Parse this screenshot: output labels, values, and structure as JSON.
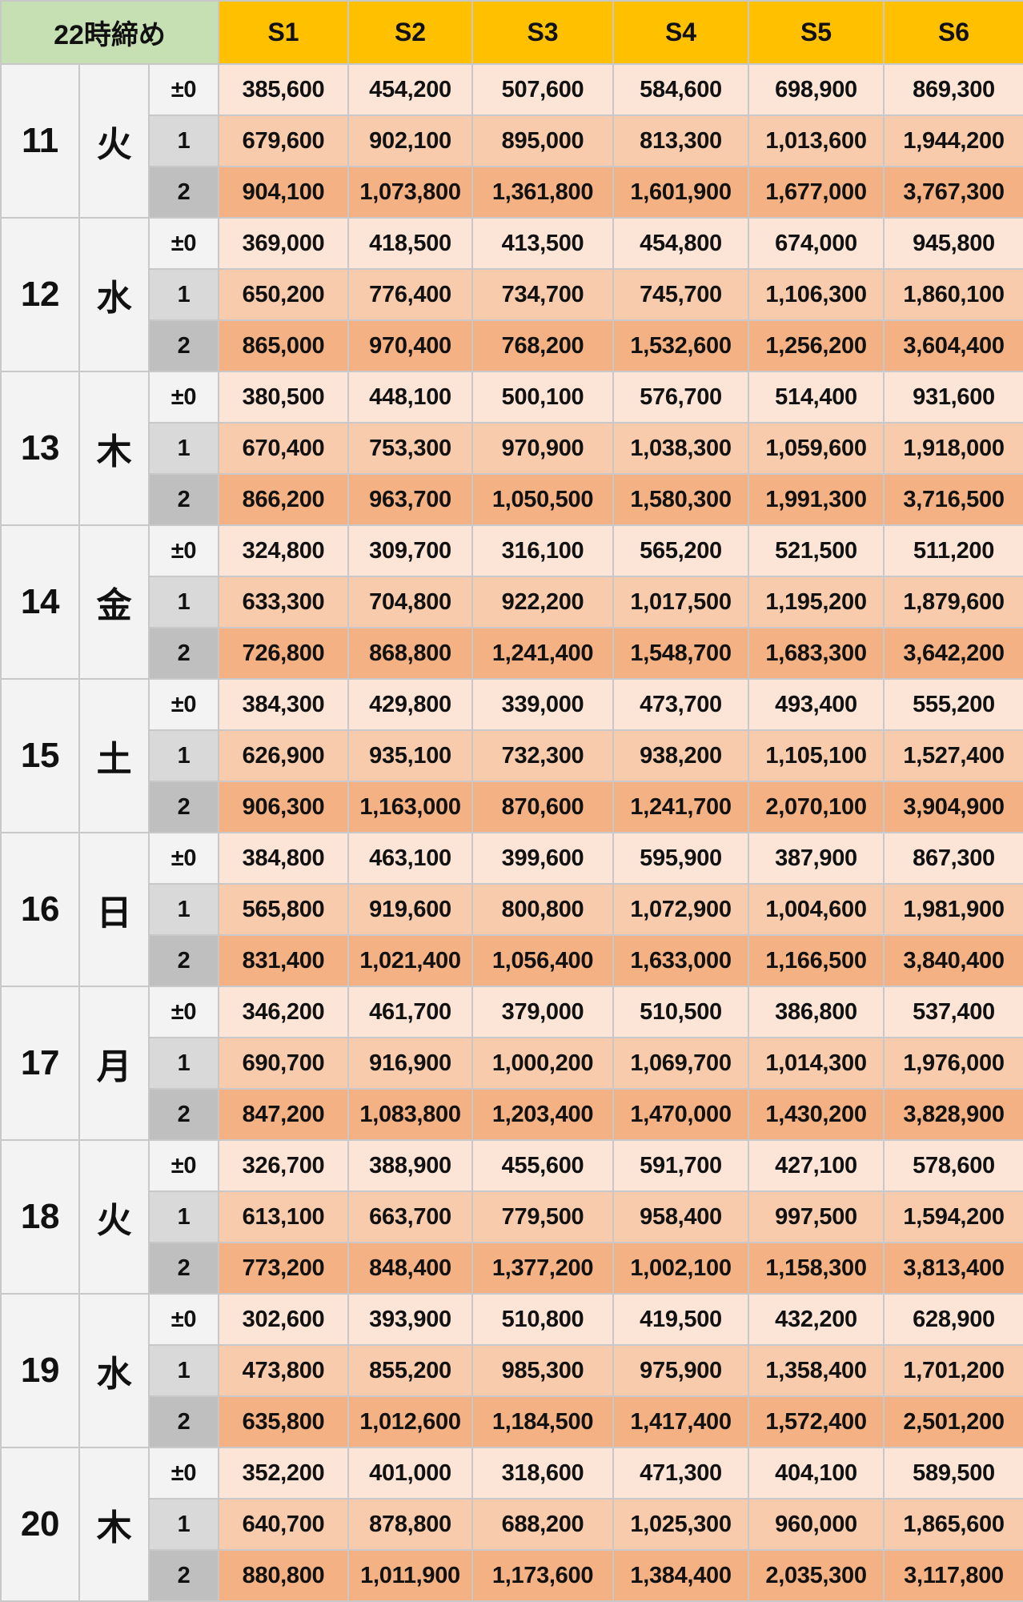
{
  "header": {
    "corner": "22時締め",
    "columns": [
      "S1",
      "S2",
      "S3",
      "S4",
      "S5",
      "S6"
    ]
  },
  "row_labels": [
    "±0",
    "1",
    "2"
  ],
  "colors": {
    "corner": "#c6e0b4",
    "header": "#ffc000",
    "row0": "#fce4d6",
    "row1": "#f8cbad",
    "row2": "#f4b183"
  },
  "days": [
    {
      "date": "11",
      "dow": "火",
      "rows": [
        [
          "385,600",
          "454,200",
          "507,600",
          "584,600",
          "698,900",
          "869,300"
        ],
        [
          "679,600",
          "902,100",
          "895,000",
          "813,300",
          "1,013,600",
          "1,944,200"
        ],
        [
          "904,100",
          "1,073,800",
          "1,361,800",
          "1,601,900",
          "1,677,000",
          "3,767,300"
        ]
      ]
    },
    {
      "date": "12",
      "dow": "水",
      "rows": [
        [
          "369,000",
          "418,500",
          "413,500",
          "454,800",
          "674,000",
          "945,800"
        ],
        [
          "650,200",
          "776,400",
          "734,700",
          "745,700",
          "1,106,300",
          "1,860,100"
        ],
        [
          "865,000",
          "970,400",
          "768,200",
          "1,532,600",
          "1,256,200",
          "3,604,400"
        ]
      ]
    },
    {
      "date": "13",
      "dow": "木",
      "rows": [
        [
          "380,500",
          "448,100",
          "500,100",
          "576,700",
          "514,400",
          "931,600"
        ],
        [
          "670,400",
          "753,300",
          "970,900",
          "1,038,300",
          "1,059,600",
          "1,918,000"
        ],
        [
          "866,200",
          "963,700",
          "1,050,500",
          "1,580,300",
          "1,991,300",
          "3,716,500"
        ]
      ]
    },
    {
      "date": "14",
      "dow": "金",
      "rows": [
        [
          "324,800",
          "309,700",
          "316,100",
          "565,200",
          "521,500",
          "511,200"
        ],
        [
          "633,300",
          "704,800",
          "922,200",
          "1,017,500",
          "1,195,200",
          "1,879,600"
        ],
        [
          "726,800",
          "868,800",
          "1,241,400",
          "1,548,700",
          "1,683,300",
          "3,642,200"
        ]
      ]
    },
    {
      "date": "15",
      "dow": "土",
      "rows": [
        [
          "384,300",
          "429,800",
          "339,000",
          "473,700",
          "493,400",
          "555,200"
        ],
        [
          "626,900",
          "935,100",
          "732,300",
          "938,200",
          "1,105,100",
          "1,527,400"
        ],
        [
          "906,300",
          "1,163,000",
          "870,600",
          "1,241,700",
          "2,070,100",
          "3,904,900"
        ]
      ]
    },
    {
      "date": "16",
      "dow": "日",
      "rows": [
        [
          "384,800",
          "463,100",
          "399,600",
          "595,900",
          "387,900",
          "867,300"
        ],
        [
          "565,800",
          "919,600",
          "800,800",
          "1,072,900",
          "1,004,600",
          "1,981,900"
        ],
        [
          "831,400",
          "1,021,400",
          "1,056,400",
          "1,633,000",
          "1,166,500",
          "3,840,400"
        ]
      ]
    },
    {
      "date": "17",
      "dow": "月",
      "rows": [
        [
          "346,200",
          "461,700",
          "379,000",
          "510,500",
          "386,800",
          "537,400"
        ],
        [
          "690,700",
          "916,900",
          "1,000,200",
          "1,069,700",
          "1,014,300",
          "1,976,000"
        ],
        [
          "847,200",
          "1,083,800",
          "1,203,400",
          "1,470,000",
          "1,430,200",
          "3,828,900"
        ]
      ]
    },
    {
      "date": "18",
      "dow": "火",
      "rows": [
        [
          "326,700",
          "388,900",
          "455,600",
          "591,700",
          "427,100",
          "578,600"
        ],
        [
          "613,100",
          "663,700",
          "779,500",
          "958,400",
          "997,500",
          "1,594,200"
        ],
        [
          "773,200",
          "848,400",
          "1,377,200",
          "1,002,100",
          "1,158,300",
          "3,813,400"
        ]
      ]
    },
    {
      "date": "19",
      "dow": "水",
      "rows": [
        [
          "302,600",
          "393,900",
          "510,800",
          "419,500",
          "432,200",
          "628,900"
        ],
        [
          "473,800",
          "855,200",
          "985,300",
          "975,900",
          "1,358,400",
          "1,701,200"
        ],
        [
          "635,800",
          "1,012,600",
          "1,184,500",
          "1,417,400",
          "1,572,400",
          "2,501,200"
        ]
      ]
    },
    {
      "date": "20",
      "dow": "木",
      "rows": [
        [
          "352,200",
          "401,000",
          "318,600",
          "471,300",
          "404,100",
          "589,500"
        ],
        [
          "640,700",
          "878,800",
          "688,200",
          "1,025,300",
          "960,000",
          "1,865,600"
        ],
        [
          "880,800",
          "1,011,900",
          "1,173,600",
          "1,384,400",
          "2,035,300",
          "3,117,800"
        ]
      ]
    }
  ]
}
